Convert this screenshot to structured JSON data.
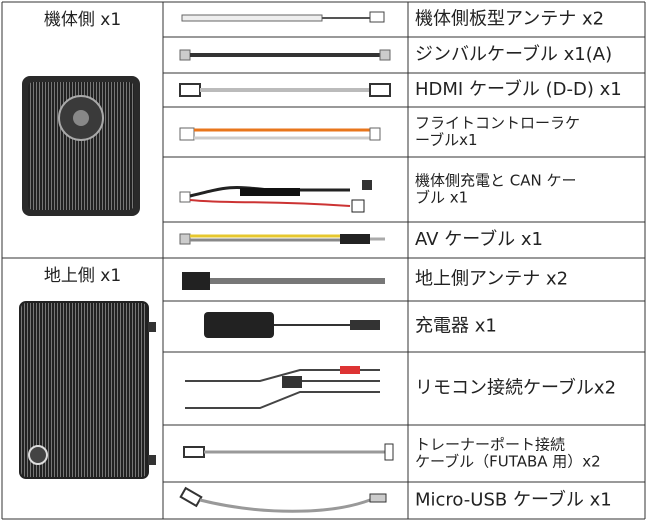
{
  "groups": [
    {
      "label": "機体側 x1",
      "items": [
        {
          "lines": [
            "機体側板型アンテナ x2"
          ]
        },
        {
          "lines": [
            "ジンバルケーブル x1(A)"
          ]
        },
        {
          "lines": [
            "HDMI ケーブル (D-D) x1"
          ]
        },
        {
          "lines": [
            "フライトコントローラケ",
            "ーブルx1"
          ]
        },
        {
          "lines": [
            "機体側充電と CAN ケー",
            "ブル x1"
          ]
        },
        {
          "lines": [
            "AV ケーブル x1"
          ]
        }
      ]
    },
    {
      "label": "地上側 x1",
      "items": [
        {
          "lines": [
            "地上側アンテナ x2"
          ]
        },
        {
          "lines": [
            "充電器 x1"
          ]
        },
        {
          "lines": [
            "リモコン接続ケーブルx2"
          ]
        },
        {
          "lines": [
            "トレーナーポート接続",
            "ケーブル（FUTABA 用）x2"
          ]
        },
        {
          "lines": [
            "Micro-USB ケーブル x1"
          ]
        }
      ]
    }
  ]
}
